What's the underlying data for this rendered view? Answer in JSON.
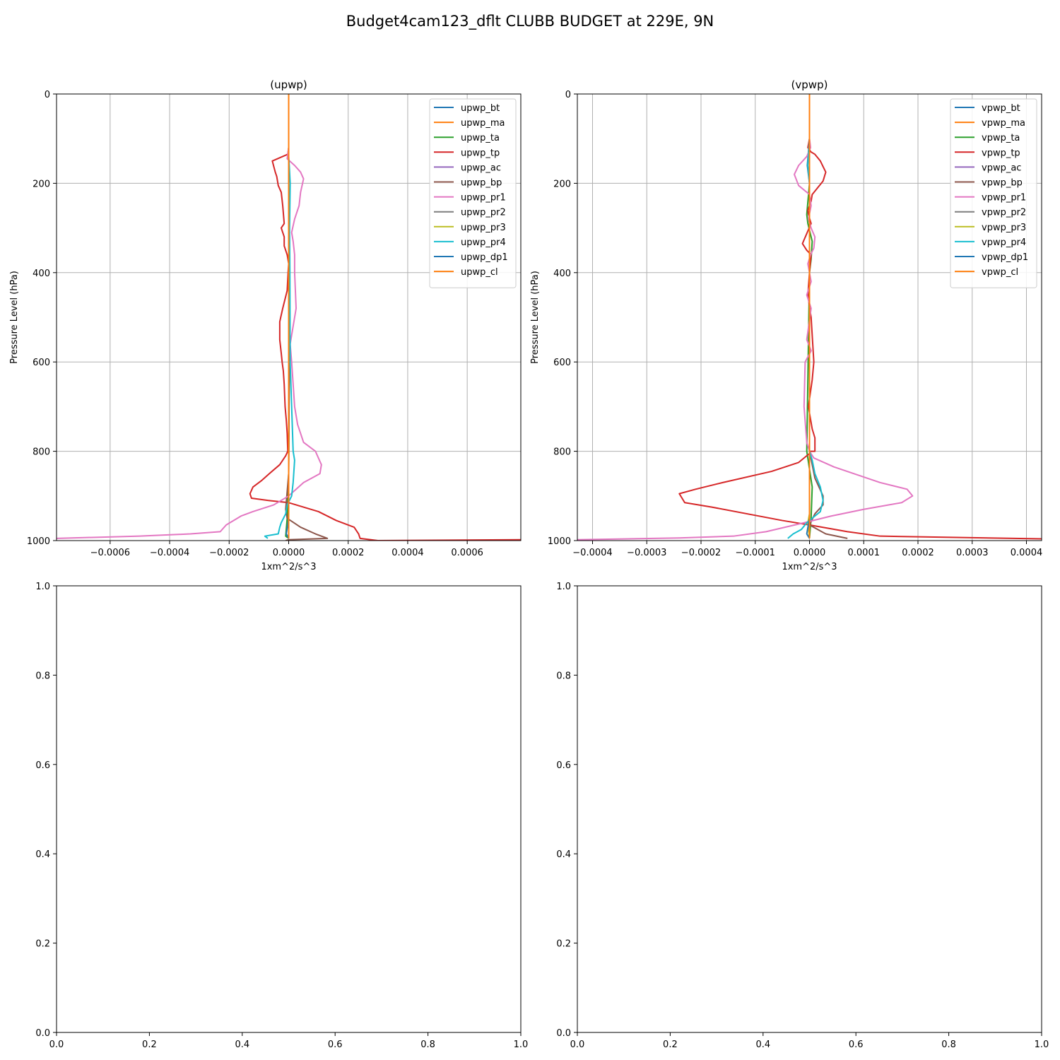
{
  "figure": {
    "title": "Budget4cam123_dflt CLUBB BUDGET at 229E, 9N"
  },
  "colors": {
    "bt": "#1f77b4",
    "ma": "#ff7f0e",
    "ta": "#2ca02c",
    "tp": "#d62728",
    "ac": "#9467bd",
    "bp": "#8c564b",
    "pr1": "#e377c2",
    "pr2": "#7f7f7f",
    "pr3": "#bcbd22",
    "pr4": "#17becf",
    "dp1": "#1f77b4",
    "cl": "#ff7f0e",
    "grid": "#b0b0b0"
  },
  "chart_data": [
    {
      "type": "line",
      "title": "(upwp)",
      "xlabel": "1xm^2/s^3",
      "ylabel": "Pressure Level (hPa)",
      "xlim": [
        -0.0007801,
        0.0007801
      ],
      "ylim": [
        1000,
        0
      ],
      "xticks": [
        -0.0006,
        -0.0004,
        -0.0002,
        0.0,
        0.0002,
        0.0004,
        0.0006
      ],
      "xtick_labels": [
        "−0.0006",
        "−0.0004",
        "−0.0002",
        "0.0000",
        "0.0002",
        "0.0004",
        "0.0006"
      ],
      "yticks": [
        0,
        200,
        400,
        600,
        800,
        1000
      ],
      "ytick_labels": [
        "0",
        "200",
        "400",
        "600",
        "800",
        "1000"
      ],
      "grid": true,
      "legend": "upper right",
      "series": [
        {
          "name": "upwp_bt",
          "color": "bt",
          "x": [
            0,
            0,
            0,
            0,
            0,
            0,
            0
          ],
          "y": [
            0,
            200,
            400,
            600,
            800,
            950,
            995
          ]
        },
        {
          "name": "upwp_ma",
          "color": "ma",
          "x": [
            0,
            0,
            0,
            0,
            0,
            0,
            0
          ],
          "y": [
            0,
            200,
            400,
            600,
            800,
            950,
            995
          ]
        },
        {
          "name": "upwp_ta",
          "color": "ta",
          "x": [
            0,
            0,
            0,
            2e-06,
            0,
            -5e-06,
            -1e-05,
            0
          ],
          "y": [
            0,
            200,
            400,
            600,
            850,
            950,
            990,
            995
          ]
        },
        {
          "name": "upwp_tp",
          "color": "tp",
          "x": [
            0,
            0,
            -3e-06,
            -5.5e-05,
            -4.5e-05,
            -4e-05,
            -3.5e-05,
            -2.5e-05,
            -2e-05,
            -1.5e-05,
            -2.5e-05,
            -1.5e-05,
            -1.5e-05,
            -5e-06,
            0,
            -2e-06,
            -5e-06,
            -2e-05,
            -3e-05,
            -3e-05,
            -2.5e-05,
            -2.2e-05,
            -1.8e-05,
            -1.5e-05,
            -1.2e-05,
            -8e-06,
            -5e-06,
            -3e-06,
            -1e-05,
            -3e-05,
            -6.5e-05,
            -9e-05,
            -0.00012,
            -0.00013,
            -0.000125,
            -7e-05,
            0,
            0.0001,
            0.00016,
            0.00022,
            0.000235,
            0.00024,
            0.0003,
            0.0007801,
            0.0009
          ],
          "y": [
            0,
            120,
            135,
            150,
            175,
            185,
            205,
            220,
            250,
            290,
            300,
            320,
            340,
            360,
            380,
            400,
            440,
            480,
            510,
            550,
            580,
            600,
            620,
            650,
            700,
            730,
            760,
            800,
            810,
            830,
            850,
            865,
            880,
            895,
            905,
            910,
            915,
            935,
            955,
            970,
            985,
            995,
            1000,
            998,
            1000
          ]
        },
        {
          "name": "upwp_ac",
          "color": "ac",
          "x": [
            0,
            0,
            0,
            0,
            0
          ],
          "y": [
            0,
            300,
            600,
            900,
            995
          ]
        },
        {
          "name": "upwp_bp",
          "color": "bp",
          "x": [
            0,
            0,
            2e-06,
            0,
            -1e-05,
            -5e-06,
            4e-05,
            9e-05,
            0.00013,
            0,
            -1e-05
          ],
          "y": [
            0,
            300,
            600,
            850,
            930,
            950,
            970,
            985,
            995,
            998,
            1000
          ]
        },
        {
          "name": "upwp_pr1",
          "color": "pr1",
          "x": [
            0,
            0,
            -5e-06,
            2e-05,
            4e-05,
            5e-05,
            4e-05,
            3.5e-05,
            2e-05,
            1e-05,
            1.5e-05,
            2e-05,
            2e-05,
            2.5e-05,
            1.5e-05,
            5e-06,
            1e-05,
            2e-05,
            3e-05,
            5e-05,
            9e-05,
            0.00011,
            0.000105,
            5e-05,
            0,
            -5e-05,
            -0.00012,
            -0.00016,
            -0.00021,
            -0.00023,
            -0.00033,
            -0.0005,
            -0.0007801,
            -0.0009
          ],
          "y": [
            0,
            120,
            145,
            160,
            175,
            190,
            220,
            250,
            280,
            310,
            330,
            360,
            400,
            480,
            520,
            560,
            600,
            700,
            740,
            780,
            800,
            830,
            850,
            870,
            900,
            920,
            935,
            945,
            965,
            980,
            985,
            990,
            995,
            1000
          ]
        },
        {
          "name": "upwp_pr2",
          "color": "pr2",
          "x": [
            0,
            0,
            0,
            0
          ],
          "y": [
            0,
            400,
            800,
            995
          ]
        },
        {
          "name": "upwp_pr3",
          "color": "pr3",
          "x": [
            0,
            0,
            0,
            0
          ],
          "y": [
            0,
            400,
            800,
            995
          ]
        },
        {
          "name": "upwp_pr4",
          "color": "pr4",
          "x": [
            0,
            0,
            2e-06,
            5e-06,
            3e-06,
            4e-06,
            5e-06,
            1e-05,
            1.5e-05,
            2e-05,
            1.5e-05,
            1e-05,
            -5e-06,
            -1e-05,
            -2.5e-05,
            -3e-05,
            -3.5e-05,
            -8e-05,
            -7e-05
          ],
          "y": [
            0,
            140,
            160,
            200,
            300,
            400,
            600,
            700,
            800,
            820,
            870,
            900,
            920,
            940,
            960,
            970,
            985,
            990,
            995
          ]
        },
        {
          "name": "upwp_dp1",
          "color": "dp1",
          "x": [
            0,
            0,
            0,
            0,
            -8e-06,
            0
          ],
          "y": [
            0,
            400,
            800,
            950,
            985,
            995
          ]
        },
        {
          "name": "upwp_cl",
          "color": "cl",
          "x": [
            0,
            0,
            0,
            0,
            0
          ],
          "y": [
            0,
            200,
            500,
            800,
            995
          ]
        }
      ]
    },
    {
      "type": "line",
      "title": "(vpwp)",
      "xlabel": "1xm^2/s^3",
      "ylabel": "Pressure Level (hPa)",
      "xlim": [
        -0.000428,
        0.000428
      ],
      "ylim": [
        1000,
        0
      ],
      "xticks": [
        -0.0004,
        -0.0003,
        -0.0002,
        -0.0001,
        0.0,
        0.0001,
        0.0002,
        0.0003,
        0.0004
      ],
      "xtick_labels": [
        "−0.0004",
        "−0.0003",
        "−0.0002",
        "−0.0001",
        "0.0000",
        "0.0001",
        "0.0002",
        "0.0003",
        "0.0004"
      ],
      "yticks": [
        0,
        200,
        400,
        600,
        800,
        1000
      ],
      "ytick_labels": [
        "0",
        "200",
        "400",
        "600",
        "800",
        "1000"
      ],
      "grid": true,
      "legend": "upper right",
      "series": [
        {
          "name": "vpwp_bt",
          "color": "bt",
          "x": [
            0,
            0,
            -4e-06,
            0,
            0,
            0,
            0
          ],
          "y": [
            0,
            100,
            160,
            200,
            500,
            800,
            995
          ]
        },
        {
          "name": "vpwp_ma",
          "color": "ma",
          "x": [
            0,
            0,
            0,
            0,
            0
          ],
          "y": [
            0,
            200,
            500,
            800,
            995
          ]
        },
        {
          "name": "vpwp_ta",
          "color": "ta",
          "x": [
            0,
            0,
            -5e-06,
            -3e-06,
            5e-06,
            3e-06,
            0,
            -5e-06,
            5e-06,
            3e-06,
            0
          ],
          "y": [
            0,
            200,
            270,
            290,
            330,
            370,
            400,
            800,
            880,
            950,
            995
          ]
        },
        {
          "name": "vpwp_tp",
          "color": "tp",
          "x": [
            0,
            0,
            -3e-06,
            3e-06,
            1e-05,
            2e-05,
            3e-05,
            2.5e-05,
            1.5e-05,
            5e-06,
            3e-06,
            -3e-06,
            -2e-06,
            3e-06,
            -1.3e-05,
            -5e-06,
            3e-06,
            0,
            -3e-06,
            3e-06,
            8e-06,
            5e-06,
            -2e-06,
            5e-06,
            1e-05,
            1e-05,
            2e-06,
            0,
            -2e-05,
            -7e-05,
            -0.00016,
            -0.00021,
            -0.00024,
            -0.00023,
            -0.00018,
            -5e-05,
            0,
            7e-05,
            0.00013,
            0.000428,
            0.0005
          ],
          "y": [
            0,
            100,
            120,
            130,
            135,
            150,
            175,
            195,
            210,
            225,
            240,
            260,
            270,
            290,
            335,
            350,
            360,
            400,
            450,
            500,
            600,
            640,
            700,
            750,
            770,
            800,
            800,
            805,
            825,
            845,
            870,
            885,
            895,
            915,
            925,
            955,
            965,
            980,
            990,
            996,
            1000
          ]
        },
        {
          "name": "vpwp_ac",
          "color": "ac",
          "x": [
            0,
            0,
            0,
            0
          ],
          "y": [
            0,
            400,
            800,
            995
          ]
        },
        {
          "name": "vpwp_bp",
          "color": "bp",
          "x": [
            0,
            0,
            0,
            1e-05,
            2.5e-05,
            2.5e-05,
            1e-05,
            0,
            3e-05,
            7e-05
          ],
          "y": [
            0,
            400,
            800,
            860,
            900,
            920,
            940,
            965,
            985,
            995
          ]
        },
        {
          "name": "vpwp_pr1",
          "color": "pr1",
          "x": [
            0,
            0,
            2e-06,
            -5e-06,
            -2e-05,
            -2.8e-05,
            -2e-05,
            0,
            3e-06,
            -2e-06,
            3e-06,
            1e-05,
            8e-06,
            2e-06,
            -3e-06,
            0,
            3e-06,
            -5e-06,
            3e-06,
            -5e-06,
            3e-06,
            -8e-06,
            -1e-05,
            -5e-06,
            0,
            8e-06,
            4.5e-05,
            0.00013,
            0.00018,
            0.00019,
            0.00017,
            0.0001,
            4e-05,
            -1e-05,
            -8e-05,
            -0.00014,
            -0.00024,
            -0.000428,
            -0.0005
          ],
          "y": [
            0,
            100,
            120,
            140,
            160,
            180,
            205,
            225,
            250,
            280,
            300,
            320,
            345,
            360,
            380,
            400,
            420,
            450,
            480,
            550,
            575,
            600,
            700,
            780,
            800,
            815,
            835,
            870,
            885,
            900,
            915,
            930,
            945,
            960,
            980,
            990,
            994,
            998,
            1000
          ]
        },
        {
          "name": "vpwp_pr2",
          "color": "pr2",
          "x": [
            0,
            0,
            0,
            0
          ],
          "y": [
            0,
            400,
            800,
            995
          ]
        },
        {
          "name": "vpwp_pr3",
          "color": "pr3",
          "x": [
            0,
            0,
            0,
            0,
            -3e-06,
            0
          ],
          "y": [
            0,
            400,
            800,
            940,
            960,
            995
          ]
        },
        {
          "name": "vpwp_pr4",
          "color": "pr4",
          "x": [
            0,
            0,
            -3e-06,
            0,
            0,
            0,
            5e-06,
            1e-05,
            2e-05,
            2.5e-05,
            2e-05,
            5e-06,
            -5e-06,
            -1.5e-05,
            -3e-05,
            -4e-05
          ],
          "y": [
            0,
            100,
            160,
            200,
            500,
            800,
            820,
            850,
            880,
            910,
            935,
            950,
            960,
            975,
            985,
            995
          ]
        },
        {
          "name": "vpwp_dp1",
          "color": "dp1",
          "x": [
            0,
            0,
            0,
            0,
            -5e-06,
            0
          ],
          "y": [
            0,
            400,
            800,
            950,
            985,
            995
          ]
        },
        {
          "name": "vpwp_cl",
          "color": "cl",
          "x": [
            0,
            0,
            0,
            0
          ],
          "y": [
            0,
            300,
            700,
            995
          ]
        }
      ]
    },
    {
      "type": "line",
      "title": "",
      "xlim": [
        0,
        1
      ],
      "ylim": [
        0,
        1
      ],
      "xticks": [
        0,
        0.2,
        0.4,
        0.6,
        0.8,
        1.0
      ],
      "xtick_labels": [
        "0.0",
        "0.2",
        "0.4",
        "0.6",
        "0.8",
        "1.0"
      ],
      "yticks": [
        0,
        0.2,
        0.4,
        0.6,
        0.8,
        1.0
      ],
      "ytick_labels": [
        "0.0",
        "0.2",
        "0.4",
        "0.6",
        "0.8",
        "1.0"
      ],
      "grid": false,
      "series": []
    },
    {
      "type": "line",
      "title": "",
      "xlim": [
        0,
        1
      ],
      "ylim": [
        0,
        1
      ],
      "xticks": [
        0,
        0.2,
        0.4,
        0.6,
        0.8,
        1.0
      ],
      "xtick_labels": [
        "0.0",
        "0.2",
        "0.4",
        "0.6",
        "0.8",
        "1.0"
      ],
      "yticks": [
        0,
        0.2,
        0.4,
        0.6,
        0.8,
        1.0
      ],
      "ytick_labels": [
        "0.0",
        "0.2",
        "0.4",
        "0.6",
        "0.8",
        "1.0"
      ],
      "grid": false,
      "series": []
    }
  ]
}
